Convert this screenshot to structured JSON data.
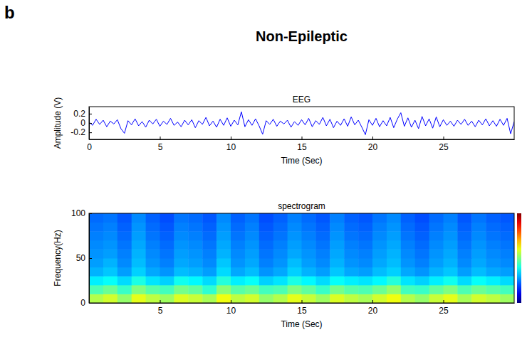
{
  "panel_label": "b",
  "title": "Non-Epileptic",
  "chart_data": [
    {
      "type": "line",
      "title": "EEG",
      "x_label": "Time (Sec)",
      "y_label": "Amplitude (V)",
      "color": "#0000ff",
      "x": [
        0,
        0.25,
        0.5,
        0.75,
        1,
        1.25,
        1.5,
        1.75,
        2,
        2.25,
        2.5,
        2.75,
        3,
        3.25,
        3.5,
        3.75,
        4,
        4.25,
        4.5,
        4.75,
        5,
        5.25,
        5.5,
        5.75,
        6,
        6.25,
        6.5,
        6.75,
        7,
        7.25,
        7.5,
        7.75,
        8,
        8.25,
        8.5,
        8.75,
        9,
        9.25,
        9.5,
        9.75,
        10,
        10.25,
        10.5,
        10.75,
        11,
        11.25,
        11.5,
        11.75,
        12,
        12.25,
        12.5,
        12.75,
        13,
        13.25,
        13.5,
        13.75,
        14,
        14.25,
        14.5,
        14.75,
        15,
        15.25,
        15.5,
        15.75,
        16,
        16.25,
        16.5,
        16.75,
        17,
        17.25,
        17.5,
        17.75,
        18,
        18.25,
        18.5,
        18.75,
        19,
        19.25,
        19.5,
        19.75,
        20,
        20.25,
        20.5,
        20.75,
        21,
        21.25,
        21.5,
        21.75,
        22,
        22.25,
        22.5,
        22.75,
        23,
        23.25,
        23.5,
        23.75,
        24,
        24.25,
        24.5,
        24.75,
        25,
        25.25,
        25.5,
        25.75,
        26,
        26.25,
        26.5,
        26.75,
        27,
        27.25,
        27.5,
        27.75,
        28,
        28.25,
        28.5,
        28.75,
        29,
        29.25,
        29.5,
        29.75,
        30
      ],
      "values": [
        0.02,
        -0.05,
        0.08,
        -0.03,
        0.06,
        -0.08,
        0.04,
        -0.02,
        0.07,
        -0.12,
        -0.22,
        0.05,
        -0.04,
        0.09,
        -0.06,
        0.03,
        -0.09,
        0.06,
        -0.02,
        0.08,
        -0.07,
        0.04,
        -0.03,
        0.1,
        -0.05,
        0.02,
        -0.08,
        0.06,
        -0.04,
        0.07,
        -0.1,
        0.05,
        -0.03,
        0.12,
        -0.06,
        0.04,
        -0.09,
        0.08,
        -0.05,
        0.11,
        -0.07,
        0.06,
        -0.04,
        0.24,
        -0.08,
        0.07,
        -0.05,
        0.09,
        -0.06,
        -0.24,
        0.05,
        -0.03,
        0.08,
        -0.07,
        0.04,
        -0.02,
        0.06,
        -0.09,
        0.03,
        -0.05,
        0.07,
        -0.04,
        0.1,
        -0.08,
        0.05,
        -0.03,
        0.12,
        -0.06,
        0.08,
        -0.1,
        0.04,
        -0.05,
        0.09,
        -0.07,
        0.13,
        -0.04,
        0.06,
        -0.09,
        -0.25,
        0.07,
        -0.05,
        0.1,
        -0.08,
        0.05,
        -0.06,
        0.12,
        -0.1,
        0.08,
        0.22,
        -0.07,
        0.11,
        -0.09,
        0.06,
        -0.12,
        0.14,
        -0.06,
        0.09,
        -0.11,
        0.13,
        -0.08,
        0.07,
        -0.05,
        0.04,
        -0.07,
        0.06,
        -0.03,
        0.08,
        -0.05,
        0.04,
        -0.08,
        0.06,
        -0.04,
        0.09,
        -0.06,
        0.05,
        -0.07,
        0.08,
        -0.05,
        0.1,
        -0.23,
        0.03
      ],
      "xlim": [
        0,
        30
      ],
      "xticks": [
        0,
        5,
        10,
        15,
        20,
        25
      ],
      "ylim": [
        -0.35,
        0.35
      ],
      "yticks": [
        -0.2,
        0,
        0.2
      ]
    },
    {
      "type": "heatmap",
      "title": "spectrogram",
      "x_label": "Time (Sec)",
      "y_label": "Frequency(Hz)",
      "x": [
        0.5,
        1.5,
        2.5,
        3.5,
        4.5,
        5.5,
        6.5,
        7.5,
        8.5,
        9.5,
        10.5,
        11.5,
        12.5,
        13.5,
        14.5,
        15.5,
        16.5,
        17.5,
        18.5,
        19.5,
        20.5,
        21.5,
        22.5,
        23.5,
        24.5,
        25.5,
        26.5,
        27.5,
        28.5,
        29.5
      ],
      "y": [
        5,
        15,
        25,
        35,
        45,
        55,
        65,
        75,
        85,
        95
      ],
      "cells": [
        [
          0.55,
          0.58,
          0.52,
          0.6,
          0.56,
          0.53,
          0.59,
          0.57,
          0.54,
          0.61,
          0.56,
          0.58,
          0.52,
          0.55,
          0.6,
          0.57,
          0.53,
          0.59,
          0.56,
          0.54,
          0.58,
          0.61,
          0.55,
          0.52,
          0.57,
          0.6,
          0.54,
          0.58,
          0.56,
          0.53
        ],
        [
          0.45,
          0.48,
          0.43,
          0.5,
          0.46,
          0.44,
          0.49,
          0.47,
          0.42,
          0.51,
          0.46,
          0.48,
          0.44,
          0.45,
          0.5,
          0.47,
          0.43,
          0.49,
          0.46,
          0.45,
          0.48,
          0.52,
          0.44,
          0.43,
          0.47,
          0.5,
          0.45,
          0.48,
          0.46,
          0.44
        ],
        [
          0.36,
          0.38,
          0.34,
          0.4,
          0.35,
          0.33,
          0.39,
          0.37,
          0.34,
          0.41,
          0.36,
          0.38,
          0.33,
          0.35,
          0.4,
          0.37,
          0.34,
          0.38,
          0.36,
          0.35,
          0.37,
          0.41,
          0.35,
          0.33,
          0.36,
          0.39,
          0.34,
          0.38,
          0.36,
          0.34
        ],
        [
          0.3,
          0.32,
          0.28,
          0.33,
          0.29,
          0.27,
          0.31,
          0.3,
          0.28,
          0.34,
          0.29,
          0.31,
          0.27,
          0.29,
          0.33,
          0.3,
          0.28,
          0.32,
          0.29,
          0.28,
          0.31,
          0.33,
          0.29,
          0.27,
          0.3,
          0.32,
          0.28,
          0.31,
          0.29,
          0.28
        ],
        [
          0.28,
          0.3,
          0.26,
          0.31,
          0.27,
          0.25,
          0.29,
          0.28,
          0.26,
          0.32,
          0.27,
          0.29,
          0.25,
          0.27,
          0.31,
          0.28,
          0.26,
          0.3,
          0.27,
          0.26,
          0.29,
          0.31,
          0.27,
          0.25,
          0.28,
          0.3,
          0.26,
          0.29,
          0.27,
          0.26
        ],
        [
          0.27,
          0.28,
          0.25,
          0.3,
          0.26,
          0.24,
          0.28,
          0.27,
          0.25,
          0.3,
          0.26,
          0.28,
          0.24,
          0.26,
          0.29,
          0.27,
          0.25,
          0.29,
          0.26,
          0.25,
          0.28,
          0.3,
          0.26,
          0.24,
          0.27,
          0.29,
          0.25,
          0.28,
          0.26,
          0.25
        ],
        [
          0.26,
          0.27,
          0.24,
          0.29,
          0.25,
          0.23,
          0.27,
          0.26,
          0.24,
          0.29,
          0.25,
          0.27,
          0.23,
          0.25,
          0.28,
          0.26,
          0.24,
          0.28,
          0.25,
          0.24,
          0.27,
          0.29,
          0.25,
          0.23,
          0.26,
          0.28,
          0.24,
          0.27,
          0.25,
          0.24
        ],
        [
          0.25,
          0.26,
          0.23,
          0.28,
          0.24,
          0.22,
          0.26,
          0.25,
          0.23,
          0.28,
          0.24,
          0.26,
          0.22,
          0.24,
          0.27,
          0.25,
          0.23,
          0.27,
          0.24,
          0.23,
          0.26,
          0.28,
          0.24,
          0.22,
          0.25,
          0.27,
          0.23,
          0.26,
          0.24,
          0.23
        ],
        [
          0.24,
          0.25,
          0.22,
          0.27,
          0.23,
          0.21,
          0.25,
          0.24,
          0.22,
          0.27,
          0.23,
          0.25,
          0.21,
          0.23,
          0.26,
          0.24,
          0.22,
          0.26,
          0.23,
          0.22,
          0.25,
          0.27,
          0.23,
          0.21,
          0.24,
          0.26,
          0.22,
          0.25,
          0.23,
          0.22
        ],
        [
          0.23,
          0.24,
          0.21,
          0.26,
          0.22,
          0.2,
          0.24,
          0.23,
          0.21,
          0.26,
          0.22,
          0.24,
          0.2,
          0.22,
          0.25,
          0.23,
          0.21,
          0.25,
          0.22,
          0.21,
          0.24,
          0.26,
          0.22,
          0.2,
          0.23,
          0.25,
          0.21,
          0.24,
          0.22,
          0.21
        ]
      ],
      "zlim": [
        0,
        1
      ],
      "xlim": [
        0,
        30
      ],
      "xticks": [
        5,
        10,
        15,
        20,
        25
      ],
      "ylim": [
        0,
        100
      ],
      "yticks": [
        0,
        50,
        100
      ]
    }
  ]
}
